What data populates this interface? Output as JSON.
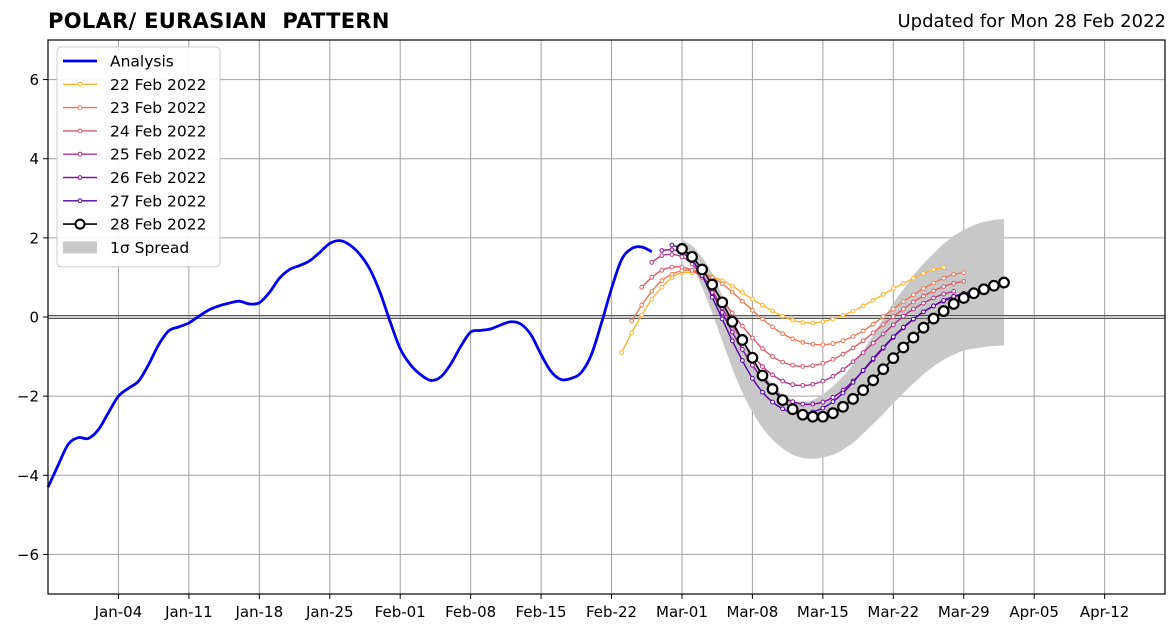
{
  "title": "POLAR/ EURASIAN  PATTERN",
  "subtitle": "Updated for Mon 28 Feb 2022",
  "chart_data": {
    "type": "line",
    "title": "POLAR/ EURASIAN  PATTERN",
    "xlabel": "",
    "ylabel": "",
    "ylim": [
      -7,
      7
    ],
    "yticks": [
      -6,
      -4,
      -2,
      0,
      2,
      4,
      6
    ],
    "ytick_labels": [
      "−6",
      "−4",
      "−2",
      "0",
      "2",
      "4",
      "6"
    ],
    "x_start": "2021-12-28",
    "x_end": "2022-04-18",
    "xticks": [
      "2022-01-04",
      "2022-01-11",
      "2022-01-18",
      "2022-01-25",
      "2022-02-01",
      "2022-02-08",
      "2022-02-15",
      "2022-02-22",
      "2022-03-01",
      "2022-03-08",
      "2022-03-15",
      "2022-03-22",
      "2022-03-29",
      "2022-04-05",
      "2022-04-12"
    ],
    "xtick_labels": [
      "Jan-04",
      "Jan-11",
      "Jan-18",
      "Jan-25",
      "Feb-01",
      "Feb-08",
      "Feb-15",
      "Feb-22",
      "Mar-01",
      "Mar-08",
      "Mar-15",
      "Mar-22",
      "Mar-29",
      "Apr-05",
      "Apr-12"
    ],
    "grid": true,
    "legend_position": "top-left",
    "series": [
      {
        "name": "Analysis",
        "color": "#0000ee",
        "kind": "analysis",
        "start": "2021-12-28",
        "values": [
          -4.3,
          -3.75,
          -3.22,
          -3.05,
          -3.07,
          -2.85,
          -2.42,
          -2.0,
          -1.8,
          -1.62,
          -1.2,
          -0.7,
          -0.35,
          -0.25,
          -0.15,
          0.02,
          0.18,
          0.28,
          0.35,
          0.4,
          0.33,
          0.36,
          0.62,
          0.98,
          1.2,
          1.3,
          1.42,
          1.63,
          1.86,
          1.93,
          1.82,
          1.58,
          1.2,
          0.62,
          -0.12,
          -0.8,
          -1.2,
          -1.45,
          -1.6,
          -1.52,
          -1.2,
          -0.75,
          -0.38,
          -0.34,
          -0.3,
          -0.2,
          -0.12,
          -0.18,
          -0.45,
          -0.95,
          -1.38,
          -1.58,
          -1.55,
          -1.4,
          -0.95,
          -0.15,
          0.72,
          1.45,
          1.73,
          1.77,
          1.65
        ]
      },
      {
        "name": "22 Feb 2022",
        "color": "#fdb42f",
        "kind": "forecast",
        "start": "2022-02-23",
        "values": [
          -0.9,
          -0.4,
          0.05,
          0.45,
          0.75,
          1.0,
          1.12,
          1.12,
          1.08,
          1.02,
          0.92,
          0.78,
          0.62,
          0.45,
          0.3,
          0.15,
          0.02,
          -0.08,
          -0.14,
          -0.15,
          -0.12,
          -0.05,
          0.04,
          0.15,
          0.28,
          0.42,
          0.57,
          0.72,
          0.85,
          0.98,
          1.1,
          1.2,
          1.25
        ]
      },
      {
        "name": "23 Feb 2022",
        "color": "#ed7953",
        "kind": "forecast",
        "start": "2022-02-24",
        "values": [
          -0.1,
          0.3,
          0.65,
          0.92,
          1.08,
          1.17,
          1.18,
          1.12,
          1.0,
          0.84,
          0.63,
          0.4,
          0.17,
          -0.05,
          -0.25,
          -0.42,
          -0.55,
          -0.64,
          -0.69,
          -0.7,
          -0.67,
          -0.6,
          -0.49,
          -0.35,
          -0.18,
          0.01,
          0.2,
          0.39,
          0.56,
          0.72,
          0.86,
          0.98,
          1.08,
          1.12
        ]
      },
      {
        "name": "24 Feb 2022",
        "color": "#db5c68",
        "kind": "forecast",
        "start": "2022-02-25",
        "values": [
          0.75,
          1.0,
          1.18,
          1.26,
          1.26,
          1.18,
          1.0,
          0.75,
          0.44,
          0.1,
          -0.23,
          -0.53,
          -0.8,
          -1.0,
          -1.14,
          -1.22,
          -1.25,
          -1.23,
          -1.17,
          -1.07,
          -0.94,
          -0.78,
          -0.6,
          -0.4,
          -0.19,
          0.01,
          0.2,
          0.38,
          0.53,
          0.66,
          0.77,
          0.85,
          0.9
        ]
      },
      {
        "name": "25 Feb 2022",
        "color": "#b83289",
        "kind": "forecast",
        "start": "2022-02-26",
        "values": [
          1.38,
          1.55,
          1.58,
          1.52,
          1.34,
          1.04,
          0.66,
          0.23,
          -0.2,
          -0.6,
          -0.96,
          -1.25,
          -1.46,
          -1.62,
          -1.71,
          -1.73,
          -1.7,
          -1.62,
          -1.5,
          -1.33,
          -1.13,
          -0.9,
          -0.66,
          -0.43,
          -0.2,
          0.02,
          0.2,
          0.35,
          0.48,
          0.58,
          0.65
        ]
      },
      {
        "name": "26 Feb 2022",
        "color": "#8b0aa5",
        "kind": "forecast",
        "start": "2022-02-27",
        "values": [
          1.68,
          1.7,
          1.62,
          1.42,
          1.08,
          0.62,
          0.12,
          -0.38,
          -0.82,
          -1.22,
          -1.56,
          -1.82,
          -2.02,
          -2.14,
          -2.2,
          -2.2,
          -2.15,
          -2.03,
          -1.85,
          -1.62,
          -1.36,
          -1.08,
          -0.79,
          -0.52,
          -0.28,
          -0.06,
          0.13,
          0.28,
          0.4,
          0.5,
          0.58,
          0.63
        ]
      },
      {
        "name": "27 Feb 2022",
        "color": "#5302a3",
        "kind": "forecast",
        "start": "2022-02-28",
        "values": [
          1.82,
          1.72,
          1.45,
          1.05,
          0.5,
          -0.05,
          -0.6,
          -1.1,
          -1.55,
          -1.9,
          -2.15,
          -2.32,
          -2.42,
          -2.44,
          -2.4,
          -2.3,
          -2.14,
          -1.92,
          -1.65,
          -1.35,
          -1.05,
          -0.77,
          -0.5,
          -0.26,
          -0.05,
          0.13,
          0.28,
          0.42,
          0.52,
          0.6,
          0.66
        ]
      },
      {
        "name": "28 Feb 2022",
        "color": "#000000",
        "kind": "current",
        "start": "2022-03-01",
        "values": [
          1.72,
          1.52,
          1.2,
          0.82,
          0.37,
          -0.12,
          -0.58,
          -1.03,
          -1.48,
          -1.82,
          -2.1,
          -2.33,
          -2.47,
          -2.52,
          -2.52,
          -2.43,
          -2.27,
          -2.07,
          -1.85,
          -1.6,
          -1.32,
          -1.04,
          -0.77,
          -0.52,
          -0.27,
          -0.04,
          0.15,
          0.33,
          0.48,
          0.6,
          0.7,
          0.79,
          0.87
        ]
      }
    ],
    "spread": {
      "name": "1σ Spread",
      "color": "#c8c8c8",
      "start": "2022-03-01",
      "upper": [
        1.95,
        1.8,
        1.5,
        1.1,
        0.55,
        0.0,
        -0.55,
        -1.05,
        -1.4,
        -1.7,
        -1.95,
        -2.1,
        -2.15,
        -2.1,
        -1.95,
        -1.75,
        -1.5,
        -1.2,
        -0.85,
        -0.45,
        -0.05,
        0.35,
        0.7,
        1.05,
        1.35,
        1.6,
        1.85,
        2.05,
        2.2,
        2.32,
        2.4,
        2.45,
        2.48
      ],
      "lower": [
        1.7,
        1.3,
        0.75,
        0.1,
        -0.6,
        -1.3,
        -1.9,
        -2.4,
        -2.8,
        -3.1,
        -3.32,
        -3.48,
        -3.56,
        -3.58,
        -3.55,
        -3.48,
        -3.35,
        -3.18,
        -2.95,
        -2.7,
        -2.45,
        -2.18,
        -1.92,
        -1.68,
        -1.45,
        -1.25,
        -1.08,
        -0.95,
        -0.85,
        -0.8,
        -0.76,
        -0.73,
        -0.72
      ]
    }
  }
}
